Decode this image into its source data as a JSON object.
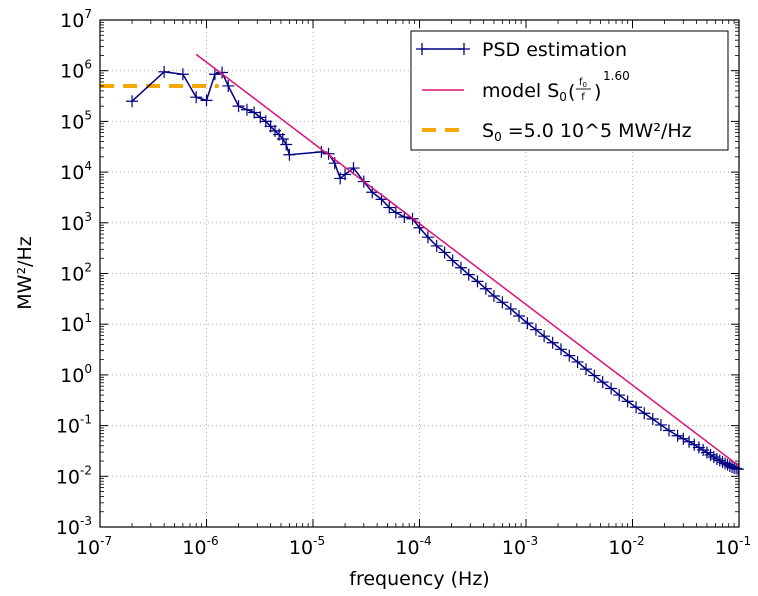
{
  "chart_data": {
    "type": "line",
    "xlabel": "frequency (Hz)",
    "ylabel": "MW²/Hz",
    "x_scale": "log",
    "y_scale": "log",
    "xlim": [
      1e-07,
      0.1
    ],
    "ylim": [
      0.001,
      10000000.0
    ],
    "grid": true,
    "legend_position": "top-right",
    "x_ticks": [
      {
        "base": "10",
        "exp": "-7",
        "value": 1e-07
      },
      {
        "base": "10",
        "exp": "-6",
        "value": 1e-06
      },
      {
        "base": "10",
        "exp": "-5",
        "value": 1e-05
      },
      {
        "base": "10",
        "exp": "-4",
        "value": 0.0001
      },
      {
        "base": "10",
        "exp": "-3",
        "value": 0.001
      },
      {
        "base": "10",
        "exp": "-2",
        "value": 0.01
      },
      {
        "base": "10",
        "exp": "-1",
        "value": 0.1
      }
    ],
    "y_ticks": [
      {
        "base": "10",
        "exp": "-3",
        "value": 0.001
      },
      {
        "base": "10",
        "exp": "-2",
        "value": 0.01
      },
      {
        "base": "10",
        "exp": "-1",
        "value": 0.1
      },
      {
        "base": "10",
        "exp": "0",
        "value": 1
      },
      {
        "base": "10",
        "exp": "1",
        "value": 10
      },
      {
        "base": "10",
        "exp": "2",
        "value": 100
      },
      {
        "base": "10",
        "exp": "3",
        "value": 1000
      },
      {
        "base": "10",
        "exp": "4",
        "value": 10000
      },
      {
        "base": "10",
        "exp": "5",
        "value": 100000
      },
      {
        "base": "10",
        "exp": "6",
        "value": 1000000
      },
      {
        "base": "10",
        "exp": "7",
        "value": 10000000
      }
    ],
    "series": [
      {
        "name": "PSD estimation",
        "color": "#000080",
        "marker": "plus",
        "x": [
          2e-07,
          4e-07,
          6e-07,
          8e-07,
          1e-06,
          1.2e-06,
          1.4e-06,
          1.6e-06,
          2e-06,
          2.4e-06,
          2.8e-06,
          3.2e-06,
          3.6e-06,
          4e-06,
          4.4e-06,
          4.8e-06,
          5.2e-06,
          5.6e-06,
          6e-06,
          1.2e-05,
          1.4e-05,
          1.6e-05,
          1.8e-05,
          2e-05,
          2.4e-05,
          3e-05,
          3.6e-05,
          4.4e-05,
          5.2e-05,
          6e-05,
          7.2e-05,
          8.6e-05,
          0.0001,
          0.00012,
          0.000145,
          0.000172,
          0.000205,
          0.000245,
          0.00029,
          0.00035,
          0.00042,
          0.0005,
          0.0006,
          0.00072,
          0.00086,
          0.00103,
          0.00124,
          0.00148,
          0.00178,
          0.00213,
          0.00255,
          0.00305,
          0.00366,
          0.00438,
          0.00525,
          0.0063,
          0.0075,
          0.009,
          0.0108,
          0.0129,
          0.0155,
          0.0185,
          0.022,
          0.0265,
          0.03,
          0.034,
          0.038,
          0.042,
          0.046,
          0.05,
          0.054,
          0.058,
          0.062,
          0.066,
          0.07,
          0.074,
          0.078,
          0.082,
          0.086,
          0.09,
          0.094,
          0.098
        ],
        "y": [
          250000.0,
          950000.0,
          850000.0,
          300000.0,
          260000.0,
          850000.0,
          920000.0,
          500000.0,
          200000.0,
          170000.0,
          150000.0,
          120000.0,
          100000.0,
          80000.0,
          65000.0,
          55000.0,
          45000.0,
          35000.0,
          22000.0,
          25000.0,
          23000.0,
          15000.0,
          7500.0,
          9000.0,
          12000.0,
          6500.0,
          4000.0,
          2900.0,
          2000.0,
          1600.0,
          1300.0,
          1200.0,
          800.0,
          520.0,
          350.0,
          260.0,
          180.0,
          130.0,
          95.0,
          70.0,
          50.0,
          36.0,
          27.0,
          20.0,
          14.5,
          10.5,
          7.8,
          5.8,
          4.3,
          3.2,
          2.4,
          1.8,
          1.3,
          0.97,
          0.72,
          0.54,
          0.4,
          0.3,
          0.23,
          0.175,
          0.135,
          0.103,
          0.08,
          0.063,
          0.055,
          0.048,
          0.042,
          0.037,
          0.033,
          0.0295,
          0.0265,
          0.024,
          0.022,
          0.0205,
          0.019,
          0.018,
          0.017,
          0.016,
          0.0152,
          0.0147,
          0.0143,
          0.0138
        ]
      },
      {
        "name": "model",
        "color": "#e0107a",
        "x": [
          8e-07,
          0.1
        ],
        "y": [
          2100000.0,
          0.016
        ]
      },
      {
        "name": "S₀ =5.0 10^5 MW²/Hz",
        "color": "#f5a800",
        "dash": true,
        "x": [
          1e-07,
          1.3e-06
        ],
        "y": [
          500000.0,
          500000.0
        ]
      }
    ],
    "legend": {
      "psd": "PSD estimation",
      "model_prefix": "model S",
      "model_sub": "0",
      "model_num": "f",
      "model_num_sub": "0",
      "model_den": "f",
      "model_exp": "1.60",
      "s0_prefix": "S",
      "s0_sub": "0",
      "s0_rest": " =5.0 10^5 MW²/Hz"
    }
  }
}
